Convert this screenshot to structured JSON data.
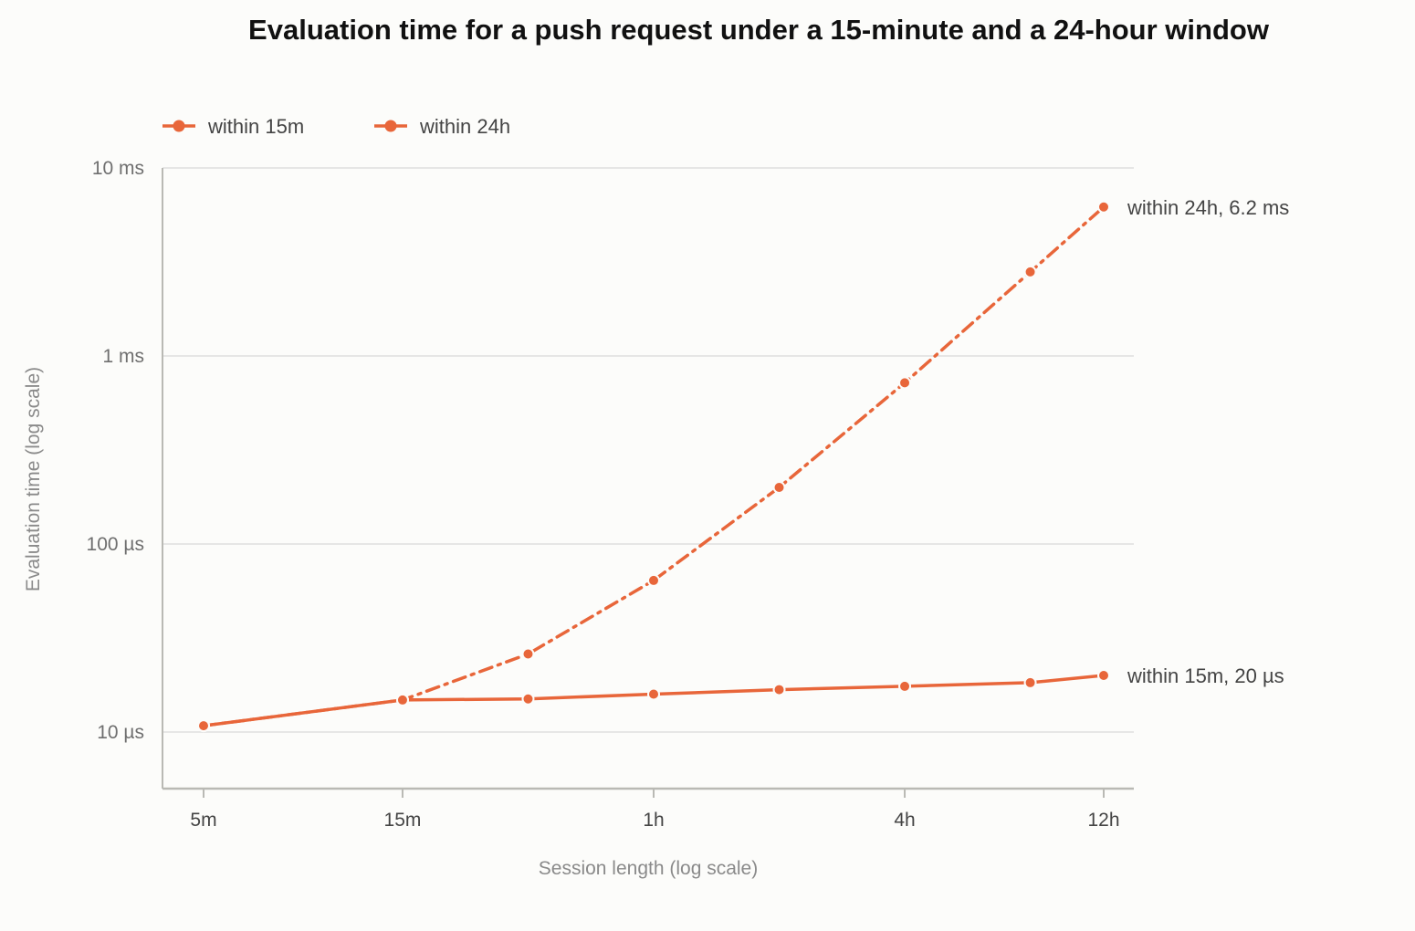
{
  "colors": {
    "series": "#e8663a",
    "grid": "#dedede",
    "axis": "#b9b9b4",
    "background": "#fcfcfa"
  },
  "chart_data": {
    "type": "line",
    "title": "Evaluation time for a push request under a 15-minute and a 24-hour window",
    "xlabel": "Session length (log scale)",
    "ylabel": "Evaluation time (log scale)",
    "x_scale": "log",
    "y_scale": "log",
    "x_unit": "minutes",
    "y_unit": "microseconds",
    "x_ticks": [
      {
        "value": 5,
        "label": "5m"
      },
      {
        "value": 15,
        "label": "15m"
      },
      {
        "value": 60,
        "label": "1h"
      },
      {
        "value": 240,
        "label": "4h"
      },
      {
        "value": 720,
        "label": "12h"
      }
    ],
    "y_ticks": [
      {
        "value": 10,
        "label": "10 µs"
      },
      {
        "value": 100,
        "label": "100 µs"
      },
      {
        "value": 1000,
        "label": "1 ms"
      },
      {
        "value": 10000,
        "label": "10 ms"
      }
    ],
    "xlim": [
      4.5,
      780
    ],
    "ylim": [
      5,
      10000
    ],
    "grid": true,
    "legend_position": "top-left",
    "series": [
      {
        "name": "within 15m",
        "line_style": "solid",
        "x": [
          5,
          15,
          30,
          60,
          120,
          240,
          480,
          720
        ],
        "y": [
          10.8,
          14.8,
          15,
          15.9,
          16.8,
          17.5,
          18.3,
          20
        ],
        "end_label": "within 15m, 20 µs"
      },
      {
        "name": "within 24h",
        "line_style": "dash-dot",
        "x": [
          5,
          15,
          30,
          60,
          120,
          240,
          480,
          720
        ],
        "y": [
          10.8,
          14.8,
          26,
          64,
          200,
          720,
          2800,
          6200
        ],
        "end_label": "within 24h, 6.2 ms"
      }
    ]
  }
}
